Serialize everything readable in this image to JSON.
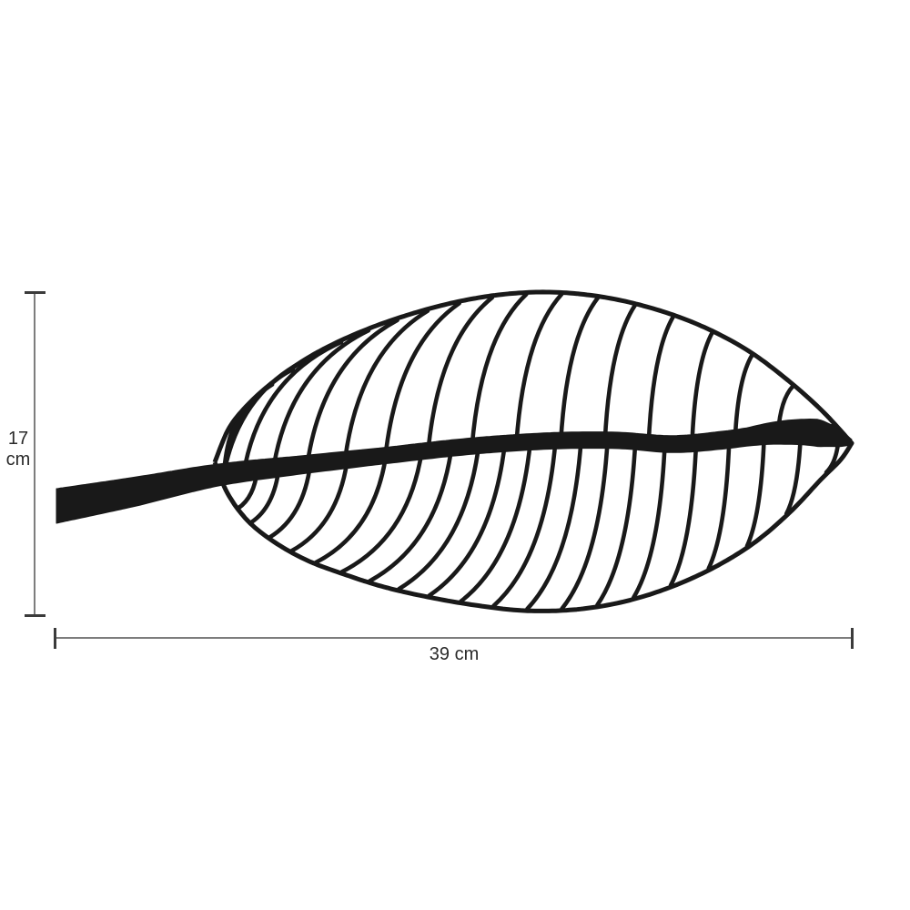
{
  "diagram": {
    "type": "product-dimension-diagram",
    "background_color": "#ffffff",
    "leaf_color": "#191919",
    "graphic": "wireframe-leaf-decor",
    "dimensions": {
      "height": {
        "value": "17",
        "unit": "cm"
      },
      "width": {
        "value": "39 cm"
      },
      "line_color": "#7d7d7d",
      "cap_color": "#3b3b3b",
      "label_color": "#2a2a2a"
    }
  }
}
